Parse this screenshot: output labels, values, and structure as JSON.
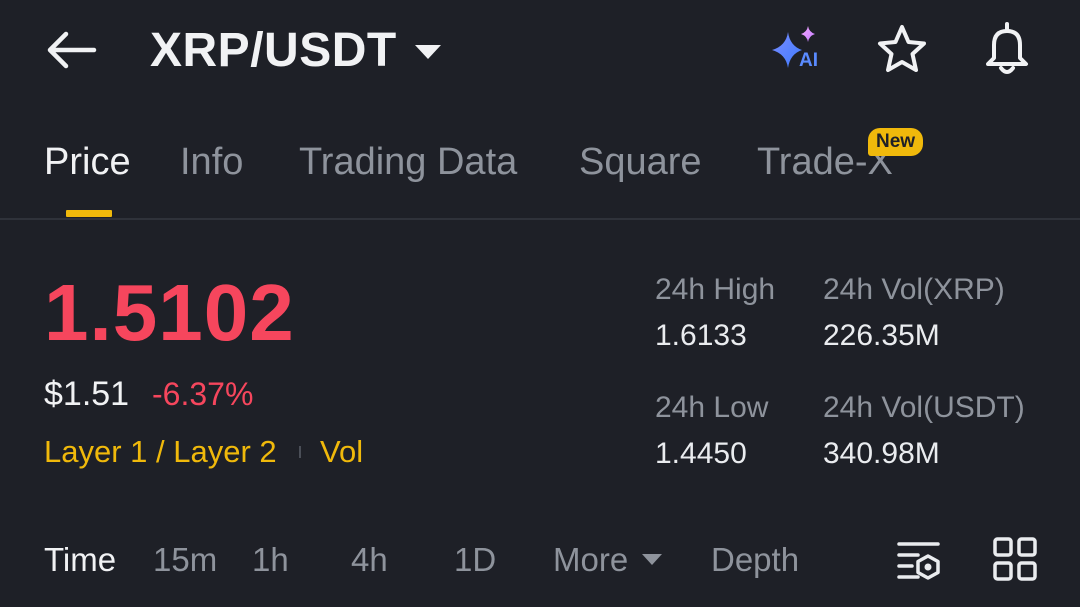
{
  "header": {
    "pair": "XRP/USDT",
    "icons": {
      "back": "arrow-left-icon",
      "ai": "ai-sparkle-icon",
      "favorite": "star-icon",
      "alert": "bell-icon"
    },
    "ai_label": "AI"
  },
  "tabs": [
    {
      "label": "Price",
      "active": true
    },
    {
      "label": "Info",
      "active": false
    },
    {
      "label": "Trading Data",
      "active": false
    },
    {
      "label": "Square",
      "active": false
    },
    {
      "label": "Trade-X",
      "active": false,
      "badge": "New"
    }
  ],
  "price": {
    "last": "1.5102",
    "usd": "$1.51",
    "change": "-6.37%",
    "tags": [
      "Layer 1 / Layer 2",
      "Vol"
    ]
  },
  "stats": {
    "high": {
      "label": "24h High",
      "value": "1.6133"
    },
    "low": {
      "label": "24h Low",
      "value": "1.4450"
    },
    "vol_base": {
      "label": "24h Vol(XRP)",
      "value": "226.35M"
    },
    "vol_quote": {
      "label": "24h Vol(USDT)",
      "value": "340.98M"
    }
  },
  "toolbar": {
    "items": [
      "Time",
      "15m",
      "1h",
      "4h",
      "1D",
      "More",
      "Depth"
    ],
    "active": "Time",
    "icons": [
      "chart-settings-icon",
      "grid-layout-icon"
    ]
  },
  "colors": {
    "background": "#1e2027",
    "accent": "#f0b90b",
    "down": "#f6465d",
    "muted": "#8e939c"
  }
}
